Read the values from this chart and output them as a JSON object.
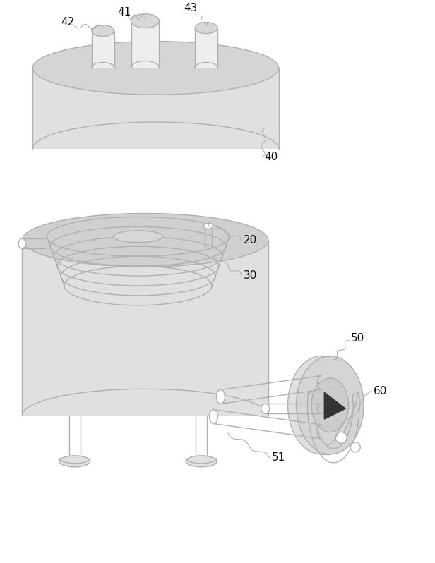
{
  "bg_color": "#ffffff",
  "line_color": "#b0b0b0",
  "text_color": "#111111",
  "label_fontsize": 11,
  "fig_width": 6.16,
  "fig_height": 7.98
}
